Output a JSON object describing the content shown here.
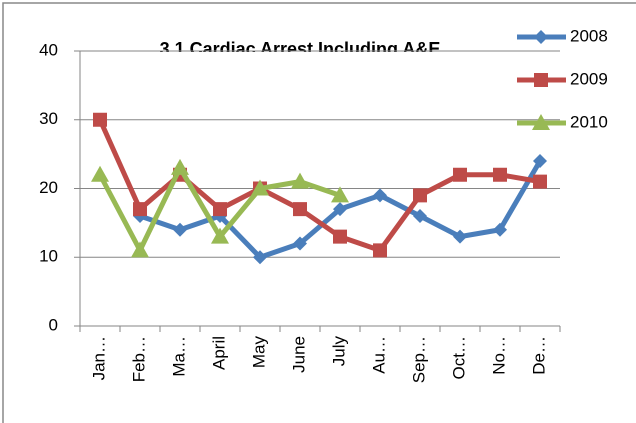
{
  "chart_data": {
    "type": "line",
    "title": "3.1 Cardiac Arrest Including A&E",
    "categories": [
      "Jan…",
      "Feb…",
      "Ma…",
      "April",
      "May",
      "June",
      "July",
      "Au…",
      "Sep…",
      "Oct…",
      "No…",
      "De…"
    ],
    "series": [
      {
        "name": "2008",
        "color": "#4a7ebb",
        "marker": "diamond",
        "values": [
          null,
          16,
          14,
          16,
          10,
          12,
          17,
          19,
          16,
          13,
          14,
          24
        ]
      },
      {
        "name": "2009",
        "color": "#be4b48",
        "marker": "square",
        "values": [
          30,
          17,
          22,
          17,
          20,
          17,
          13,
          11,
          19,
          22,
          22,
          21
        ]
      },
      {
        "name": "2010",
        "color": "#98b954",
        "marker": "triangle",
        "values": [
          22,
          11,
          23,
          13,
          20,
          21,
          19,
          null,
          null,
          null,
          null,
          null
        ]
      }
    ],
    "ylim": [
      0,
      40
    ],
    "yticks": [
      0,
      10,
      20,
      30,
      40
    ],
    "grid": true,
    "legend": "right"
  }
}
